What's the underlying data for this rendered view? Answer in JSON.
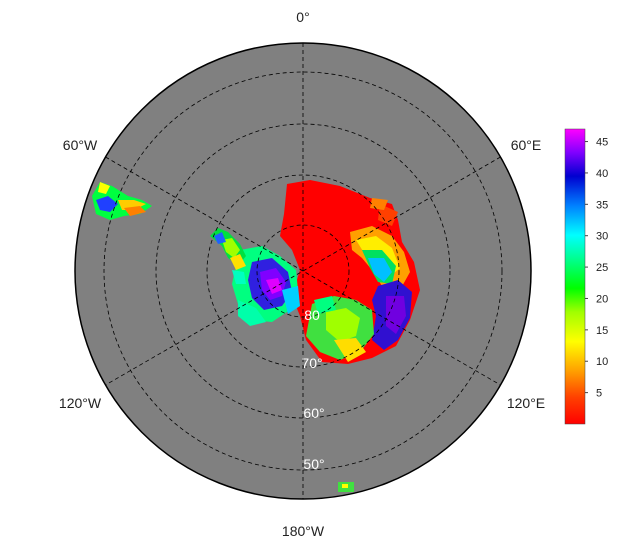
{
  "map": {
    "projection": "south-polar-stereographic",
    "ocean_color": "#808080",
    "frame_color": "#000000",
    "graticule_style": "dashed",
    "longitude_labels": {
      "top": "0°",
      "upper_left": "60°W",
      "upper_right": "60°E",
      "lower_left": "120°W",
      "lower_right": "120°E",
      "bottom": "180°W"
    },
    "latitude_labels": [
      "80",
      "70°",
      "60°",
      "50°"
    ],
    "colorbar": {
      "min": 0,
      "max": 47,
      "ticks": [
        "5",
        "10",
        "15",
        "20",
        "25",
        "30",
        "35",
        "40",
        "45"
      ],
      "colors": [
        "#ff0000",
        "#ff8000",
        "#ffff00",
        "#80ff00",
        "#00ff00",
        "#00ff80",
        "#00ffff",
        "#0080ff",
        "#0000ff",
        "#8000ff",
        "#ff00ff"
      ]
    }
  }
}
